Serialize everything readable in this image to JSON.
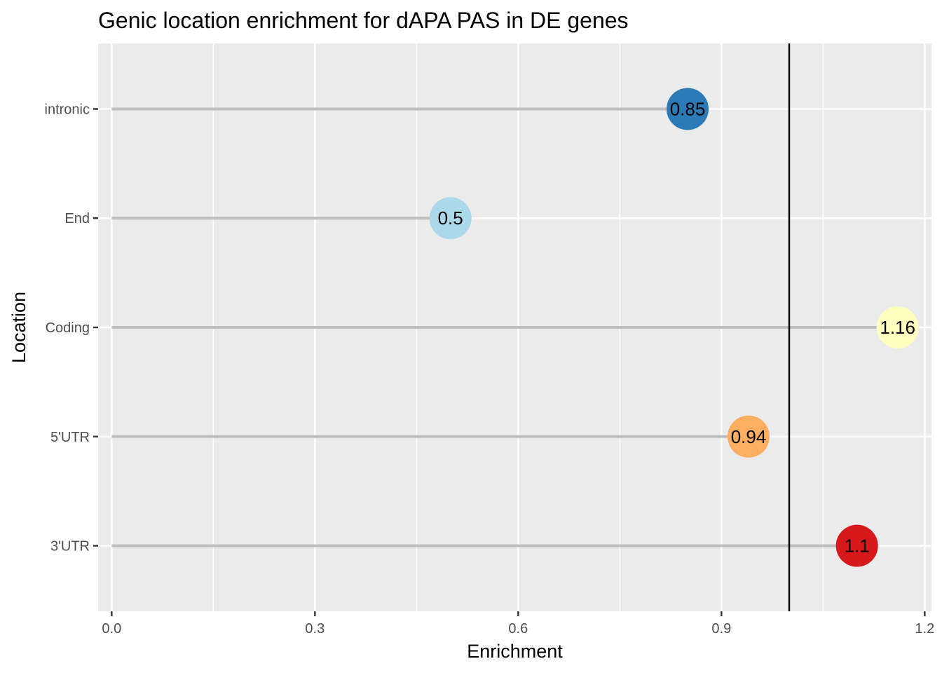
{
  "chart_data": {
    "type": "lollipop",
    "title": "Genic location enrichment for dAPA PAS in DE genes",
    "xlabel": "Enrichment",
    "ylabel": "Location",
    "xlim": [
      -0.02,
      1.21
    ],
    "x_ticks": [
      0.0,
      0.3,
      0.6,
      0.9,
      1.2
    ],
    "x_tick_labels": [
      "0.0",
      "0.3",
      "0.6",
      "0.9",
      "1.2"
    ],
    "reference_line": 1.0,
    "grid": true,
    "categories": [
      "intronic",
      "End",
      "Coding",
      "5'UTR",
      "3'UTR"
    ],
    "values": [
      0.85,
      0.5,
      1.16,
      0.94,
      1.1
    ],
    "labels": [
      "0.85",
      "0.5",
      "1.16",
      "0.94",
      "1.1"
    ],
    "point_colors": [
      "#2c7bb6",
      "#abd9e9",
      "#ffffbf",
      "#fdae61",
      "#d7191c"
    ],
    "colors": {
      "panel_background": "#ebebeb",
      "grid": "#ffffff",
      "stem": "#bebebe",
      "reference_line": "#000000"
    }
  }
}
